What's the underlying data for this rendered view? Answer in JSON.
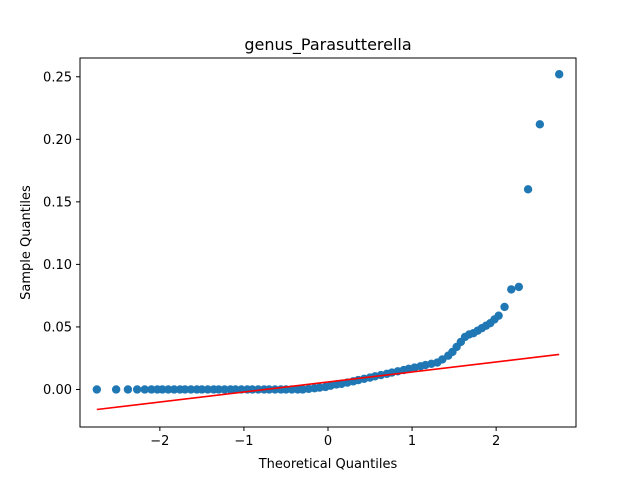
{
  "chart_data": {
    "type": "scatter",
    "title": "genus_Parasutterella",
    "xlabel": "Theoretical Quantiles",
    "ylabel": "Sample Quantiles",
    "xlim": [
      -2.95,
      2.95
    ],
    "ylim": [
      -0.03,
      0.265
    ],
    "x_ticks": [
      -2,
      -1,
      0,
      1,
      2
    ],
    "x_tick_labels": [
      "−2",
      "−1",
      "0",
      "1",
      "2"
    ],
    "y_ticks": [
      0.0,
      0.05,
      0.1,
      0.15,
      0.2,
      0.25
    ],
    "y_tick_labels": [
      "0.00",
      "0.05",
      "0.10",
      "0.15",
      "0.20",
      "0.25"
    ],
    "grid": false,
    "marker_color": "#1f77b4",
    "line_color": "#ff0000",
    "reference_line": {
      "x": [
        -2.75,
        2.75
      ],
      "y": [
        -0.016,
        0.028
      ]
    },
    "sample_points": {
      "x": [
        -2.75,
        -2.52,
        -2.38,
        -2.27,
        -2.18,
        -2.1,
        -2.03,
        -1.97,
        -1.9,
        -1.83,
        -1.76,
        -1.7,
        -1.63,
        -1.56,
        -1.5,
        -1.43,
        -1.36,
        -1.3,
        -1.23,
        -1.16,
        -1.1,
        -1.03,
        -0.96,
        -0.9,
        -0.83,
        -0.76,
        -0.7,
        -0.63,
        -0.56,
        -0.5,
        -0.43,
        -0.36,
        -0.3,
        -0.23,
        -0.16,
        -0.1,
        -0.03,
        0.03,
        0.1,
        0.16,
        0.23,
        0.3,
        0.36,
        0.43,
        0.5,
        0.56,
        0.63,
        0.7,
        0.76,
        0.83,
        0.9,
        0.96,
        1.03,
        1.1,
        1.16,
        1.23,
        1.3,
        1.36,
        1.43,
        1.48,
        1.53,
        1.58,
        1.63,
        1.68,
        1.73,
        1.78,
        1.83,
        1.88,
        1.93,
        1.98,
        2.03,
        2.1,
        2.18,
        2.27,
        2.38,
        2.52,
        2.75
      ],
      "y": [
        0.0,
        0.0,
        0.0,
        0.0,
        0.0,
        0.0,
        0.0,
        0.0,
        0.0,
        0.0,
        0.0,
        0.0,
        0.0,
        0.0,
        0.0,
        0.0,
        0.0,
        0.0,
        0.0,
        0.0,
        0.0,
        0.0,
        0.0,
        0.0,
        0.0,
        0.0,
        0.0,
        0.0,
        0.0,
        0.0,
        0.0,
        0.0,
        0.0,
        0.0005,
        0.001,
        0.0015,
        0.002,
        0.003,
        0.004,
        0.0045,
        0.0055,
        0.0065,
        0.0075,
        0.0085,
        0.0095,
        0.0105,
        0.0115,
        0.0125,
        0.0135,
        0.0145,
        0.0155,
        0.0165,
        0.0175,
        0.0185,
        0.0195,
        0.0205,
        0.0215,
        0.024,
        0.027,
        0.03,
        0.034,
        0.038,
        0.042,
        0.044,
        0.045,
        0.047,
        0.049,
        0.051,
        0.053,
        0.056,
        0.059,
        0.066,
        0.08,
        0.082,
        0.16,
        0.212,
        0.252
      ]
    }
  }
}
